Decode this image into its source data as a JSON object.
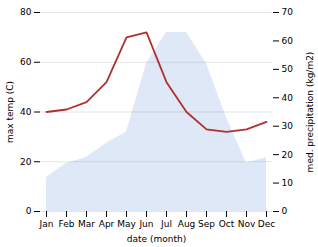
{
  "chart_data": {
    "type": "line",
    "categories": [
      "Jan",
      "Feb",
      "Mar",
      "Apr",
      "May",
      "Jun",
      "Jul",
      "Aug",
      "Sep",
      "Oct",
      "Nov",
      "Dec"
    ],
    "xlabel": "date (month)",
    "ylabel": "max temp (C)",
    "y2label": "med. precipitation (kg/m2)",
    "series": [
      {
        "type": "area",
        "axis": "y2",
        "color": "#c5d5ee",
        "values": [
          12,
          17,
          19,
          24,
          28,
          52,
          63,
          63,
          52,
          33,
          17,
          19
        ]
      },
      {
        "type": "line",
        "color": "#b03030",
        "values": [
          40,
          41,
          44,
          52,
          70,
          72,
          52,
          40,
          33,
          32,
          33,
          36
        ]
      }
    ],
    "ylim": [
      0,
      80
    ],
    "yticks": [
      0,
      20,
      40,
      60,
      80
    ],
    "y2lim": [
      0,
      70
    ],
    "y2ticks": [
      0,
      10,
      20,
      30,
      40,
      50,
      60,
      70
    ],
    "grid": true
  }
}
